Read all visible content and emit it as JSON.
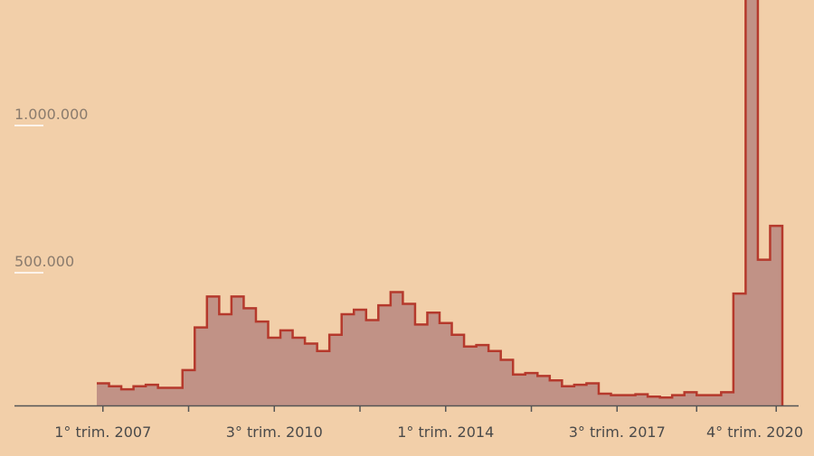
{
  "chart_data": {
    "type": "area",
    "step": true,
    "ylim": [
      0,
      1400000
    ],
    "yticks": [
      {
        "value": 1000000,
        "label": "1.000.000"
      },
      {
        "value": 500000,
        "label": "500.000"
      }
    ],
    "xticks": [
      {
        "index": 0,
        "label": "1° trim. 2007"
      },
      {
        "index": 14,
        "label": "3° trim. 2010"
      },
      {
        "index": 28,
        "label": "1° trim. 2014"
      },
      {
        "index": 42,
        "label": "3° trim. 2017"
      },
      {
        "index": 55,
        "label": "4° trim. 2020"
      }
    ],
    "x": [
      "1° trim. 2007",
      "2° trim. 2007",
      "3° trim. 2007",
      "4° trim. 2007",
      "1° trim. 2008",
      "2° trim. 2008",
      "3° trim. 2008",
      "4° trim. 2008",
      "1° trim. 2009",
      "2° trim. 2009",
      "3° trim. 2009",
      "4° trim. 2009",
      "1° trim. 2010",
      "2° trim. 2010",
      "3° trim. 2010",
      "4° trim. 2010",
      "1° trim. 2011",
      "2° trim. 2011",
      "3° trim. 2011",
      "4° trim. 2011",
      "1° trim. 2012",
      "2° trim. 2012",
      "3° trim. 2012",
      "4° trim. 2012",
      "1° trim. 2013",
      "2° trim. 2013",
      "3° trim. 2013",
      "4° trim. 2013",
      "1° trim. 2014",
      "2° trim. 2014",
      "3° trim. 2014",
      "4° trim. 2014",
      "1° trim. 2015",
      "2° trim. 2015",
      "3° trim. 2015",
      "4° trim. 2015",
      "1° trim. 2016",
      "2° trim. 2016",
      "3° trim. 2016",
      "4° trim. 2016",
      "1° trim. 2017",
      "2° trim. 2017",
      "3° trim. 2017",
      "4° trim. 2017",
      "1° trim. 2018",
      "2° trim. 2018",
      "3° trim. 2018",
      "4° trim. 2018",
      "1° trim. 2019",
      "2° trim. 2019",
      "3° trim. 2019",
      "4° trim. 2019",
      "1° trim. 2020",
      "2° trim. 2020",
      "3° trim. 2020",
      "4° trim. 2020"
    ],
    "values": [
      75000,
      65000,
      55000,
      65000,
      70000,
      60000,
      60000,
      120000,
      265000,
      370000,
      310000,
      370000,
      330000,
      285000,
      230000,
      255000,
      230000,
      210000,
      185000,
      240000,
      310000,
      325000,
      290000,
      340000,
      385000,
      345000,
      275000,
      315000,
      280000,
      240000,
      200000,
      205000,
      185000,
      155000,
      105000,
      110000,
      100000,
      85000,
      65000,
      70000,
      75000,
      40000,
      35000,
      35000,
      38000,
      30000,
      27000,
      35000,
      45000,
      35000,
      35000,
      45000,
      380000,
      1900000,
      495000,
      610000
    ],
    "colors": {
      "line": "#b5392c",
      "fill": "#c19286",
      "axis": "#555555",
      "tick_underline": "#ffffff"
    }
  }
}
